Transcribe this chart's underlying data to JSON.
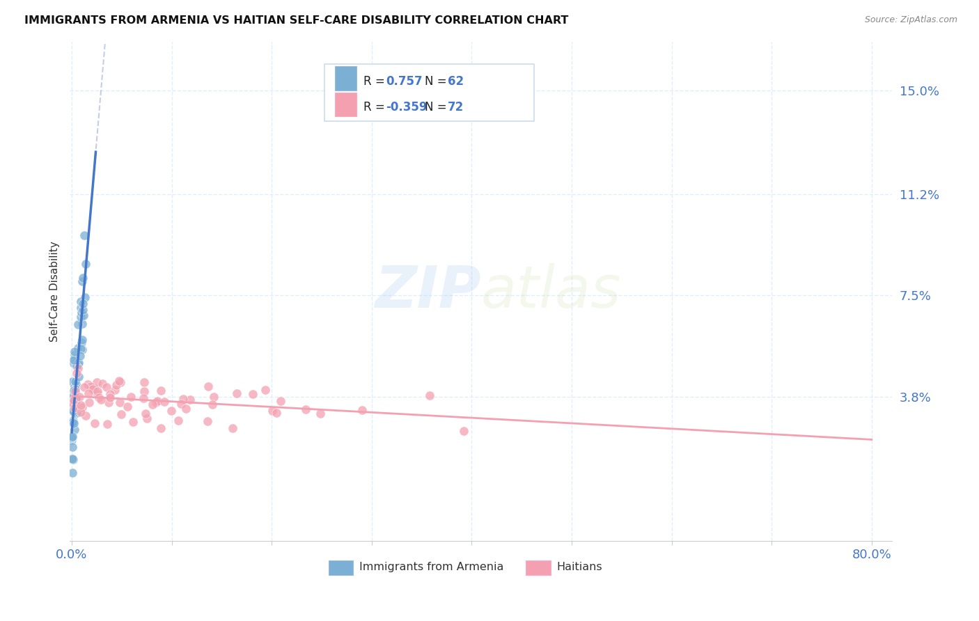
{
  "title": "IMMIGRANTS FROM ARMENIA VS HAITIAN SELF-CARE DISABILITY CORRELATION CHART",
  "source": "Source: ZipAtlas.com",
  "ylabel": "Self-Care Disability",
  "ytick_labels": [
    "3.8%",
    "7.5%",
    "11.2%",
    "15.0%"
  ],
  "ytick_values": [
    0.038,
    0.075,
    0.112,
    0.15
  ],
  "xlim": [
    -0.002,
    0.82
  ],
  "ylim": [
    -0.015,
    0.168
  ],
  "legend_label1": "Immigrants from Armenia",
  "legend_label2": "Haitians",
  "watermark_zip": "ZIP",
  "watermark_atlas": "atlas",
  "color_blue": "#7BAFD4",
  "color_pink": "#F4A0B0",
  "color_blue_dark": "#4477CC",
  "color_pink_text": "#E05070",
  "grid_color": "#DDEEFF",
  "r1_val": "0.757",
  "r2_val": "-0.359",
  "n1_val": "62",
  "n2_val": "72"
}
